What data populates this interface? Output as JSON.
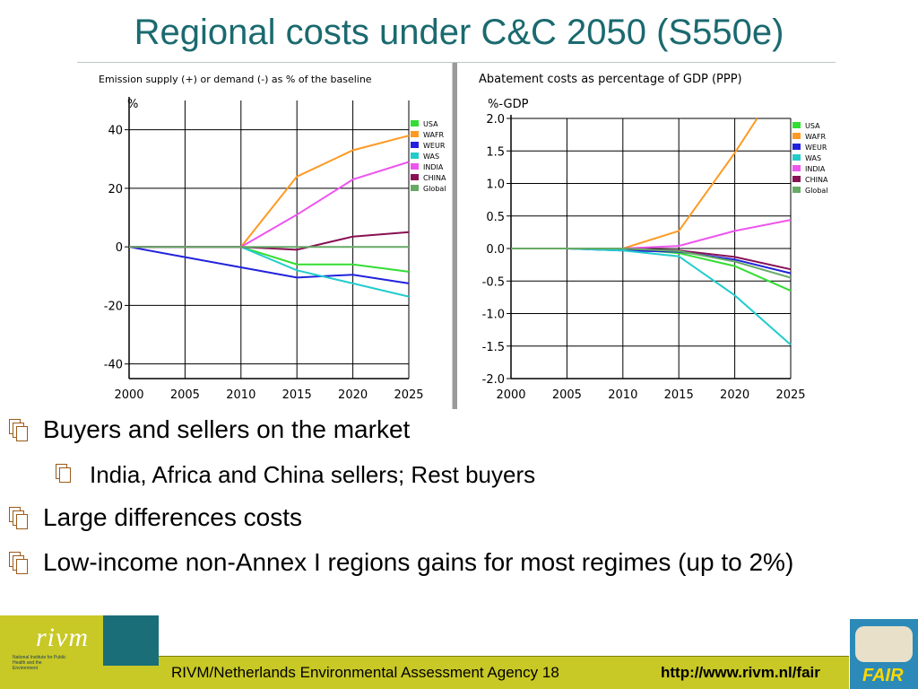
{
  "slide": {
    "title": "Regional costs under C&C 2050 (S550e)",
    "bullets": [
      "Buyers and sellers on the market",
      "India, Africa and China sellers; Rest buyers",
      "Large differences costs",
      "Low-income non-Annex I regions gains for most regimes (up to 2%)"
    ],
    "footer": {
      "agency": "RIVM/Netherlands Environmental Assessment Agency 18",
      "url": "http://www.rivm.nl/fair",
      "logo_text": "rivm",
      "logo_subtitle": "National Institute for Public Health and the Environment",
      "fair_logo_text": "FAIR"
    }
  },
  "chart_data": [
    {
      "type": "line",
      "title": "Emission supply (+) or demand (-) as % of the baseline",
      "ylabel": "%",
      "xlabel": "",
      "x": [
        2000,
        2005,
        2010,
        2015,
        2020,
        2025
      ],
      "xticks": [
        "2000",
        "2005",
        "2010",
        "2015",
        "2020",
        "2025"
      ],
      "ylim": [
        -45,
        50
      ],
      "yticks": [
        40,
        20,
        0,
        -20,
        -40
      ],
      "ytick_labels": [
        "40",
        "20",
        "0",
        "-20",
        "-40"
      ],
      "grid": true,
      "legend_position": "right",
      "series": [
        {
          "name": "USA",
          "color": "#33dd33",
          "values": [
            0,
            0,
            0,
            -6,
            -6,
            -8.5
          ]
        },
        {
          "name": "WAFR",
          "color": "#ff9922",
          "values": [
            0,
            0,
            0,
            24,
            33,
            38
          ]
        },
        {
          "name": "WEUR",
          "color": "#2222dd",
          "values": [
            0,
            -3.5,
            -7,
            -10.5,
            -9.5,
            -12.5
          ]
        },
        {
          "name": "WAS",
          "color": "#22cccc",
          "values": [
            0,
            0,
            0,
            -8,
            -12.5,
            -17
          ]
        },
        {
          "name": "INDIA",
          "color": "#ee55ee",
          "values": [
            0,
            0,
            0,
            11,
            23,
            29
          ]
        },
        {
          "name": "CHINA",
          "color": "#881155",
          "values": [
            0,
            0,
            0,
            -1,
            3.5,
            5
          ]
        },
        {
          "name": "Global",
          "color": "#66aa66",
          "values": [
            0,
            0,
            0,
            0,
            0,
            0
          ]
        }
      ]
    },
    {
      "type": "line",
      "title": "Abatement costs as percentage of GDP (PPP)",
      "ylabel": "%-GDP",
      "xlabel": "",
      "x": [
        2000,
        2005,
        2010,
        2015,
        2020,
        2025
      ],
      "xticks": [
        "2000",
        "2005",
        "2010",
        "2015",
        "2020",
        "2025"
      ],
      "ylim": [
        -2.0,
        2.0
      ],
      "yticks": [
        2.0,
        1.5,
        1.0,
        0.5,
        0.0,
        -0.5,
        -1.0,
        -1.5,
        -2.0
      ],
      "ytick_labels": [
        "2.0",
        "1.5",
        "1.0",
        "0.5",
        "0.0",
        "-0.5",
        "-1.0",
        "-1.5",
        "-2.0"
      ],
      "grid": true,
      "legend_position": "right",
      "series": [
        {
          "name": "USA",
          "color": "#33dd33",
          "values": [
            0,
            0,
            0,
            -0.07,
            -0.27,
            -0.65
          ]
        },
        {
          "name": "WAFR",
          "color": "#ff9922",
          "x": [
            2000,
            2005,
            2010,
            2015,
            2020,
            2022
          ],
          "values": [
            0,
            0,
            0,
            0.27,
            1.47,
            2.0
          ]
        },
        {
          "name": "WEUR",
          "color": "#2222dd",
          "values": [
            0,
            0,
            -0.03,
            -0.05,
            -0.17,
            -0.38
          ]
        },
        {
          "name": "WAS",
          "color": "#22cccc",
          "values": [
            0,
            0,
            -0.03,
            -0.12,
            -0.72,
            -1.48
          ]
        },
        {
          "name": "INDIA",
          "color": "#ee55ee",
          "values": [
            0,
            0,
            0,
            0.04,
            0.27,
            0.44
          ]
        },
        {
          "name": "CHINA",
          "color": "#881155",
          "values": [
            0,
            0,
            0,
            -0.03,
            -0.13,
            -0.32
          ]
        },
        {
          "name": "Global",
          "color": "#66aa66",
          "values": [
            0,
            0,
            0,
            -0.04,
            -0.2,
            -0.45
          ]
        }
      ]
    }
  ]
}
